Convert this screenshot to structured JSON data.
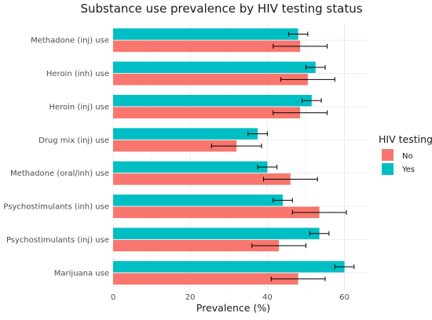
{
  "chart_data": {
    "type": "bar",
    "orientation": "horizontal",
    "title": "Substance use prevalence by HIV testing status",
    "xlabel": "Prevalence (%)",
    "ylabel": "",
    "xlim": [
      0,
      66
    ],
    "xticks": [
      "0",
      "20",
      "40",
      "60"
    ],
    "grid": true,
    "legend": {
      "title": "HIV testing",
      "position": "right"
    },
    "categories": [
      "Methadone (inj) use",
      "Heroin (inh) use",
      "Heroin (inj) use",
      "Drug mix (inj) use",
      "Methadone (oral/inh) use",
      "Psychostimulants (inh) use",
      "Psychostimulants (inj) use",
      "Marijuana use"
    ],
    "series": [
      {
        "name": "Yes",
        "color": "#00BFC4",
        "values": [
          48,
          52.5,
          51.5,
          37.5,
          40,
          44,
          53.5,
          60
        ],
        "error_low": [
          45.5,
          50,
          49,
          35,
          37.5,
          41.5,
          51,
          57.5
        ],
        "error_high": [
          50.5,
          55,
          54,
          40,
          42.5,
          46.5,
          56,
          62.5
        ]
      },
      {
        "name": "No",
        "color": "#F8766D",
        "values": [
          48.5,
          50.5,
          48.5,
          32,
          46,
          53.5,
          43,
          48
        ],
        "error_low": [
          41.5,
          43.5,
          41.5,
          25.5,
          39,
          46.5,
          36,
          41
        ],
        "error_high": [
          55.5,
          57.5,
          55.5,
          38.5,
          53,
          60.5,
          50,
          55
        ]
      }
    ]
  }
}
